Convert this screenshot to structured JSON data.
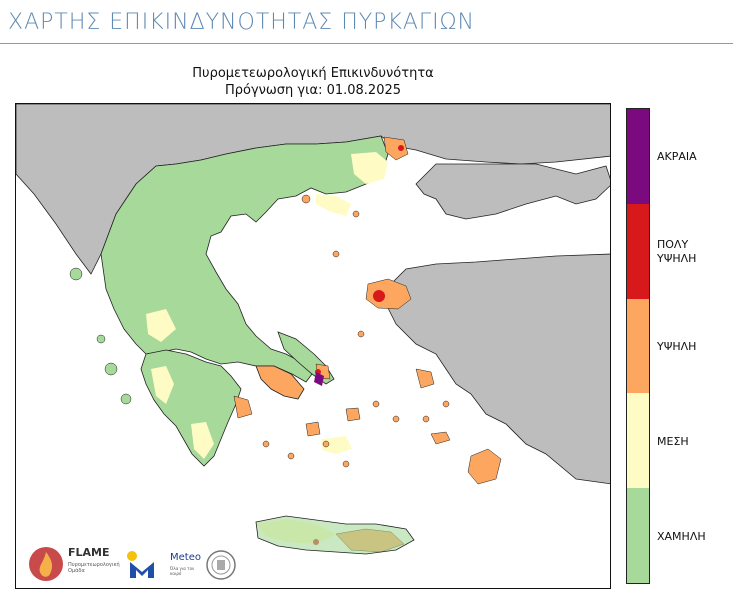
{
  "page": {
    "title": "ΧΑΡΤΗΣ ΕΠΙΚΙΝΔΥΝΟΤΗΤΑΣ ΠΥΡΚΑΓΙΩΝ"
  },
  "map": {
    "title_line1": "Πυρομετεωρολογική Επικινδυνότητα",
    "title_line2": "Πρόγνωση για: 01.08.2025",
    "colors": {
      "sea": "#ffffff",
      "neighbor_land": "#bdbdbd",
      "low": "#a6d99a",
      "medium": "#fefcc4",
      "high": "#fca660",
      "very_high": "#d7191c",
      "extreme": "#7b0a7e",
      "borders": "#222222"
    }
  },
  "legend": {
    "items": [
      {
        "label": "ΑΚΡΑΙΑ",
        "color": "#7b0a7e"
      },
      {
        "label": "ΠΟΛΥ ΥΨΗΛΗ",
        "color": "#d7191c"
      },
      {
        "label": "ΥΨΗΛΗ",
        "color": "#fca660"
      },
      {
        "label": "ΜΕΣΗ",
        "color": "#fefcc4"
      },
      {
        "label": "ΧΑΜΗΛΗ",
        "color": "#a6d99a"
      }
    ]
  },
  "logos": {
    "flame": {
      "name": "FLAME",
      "subtitle": "Πυρομετεωρολογική Ομάδα"
    },
    "meteo": {
      "name": "Meteo",
      "subtitle": "Όλα για τον καιρό"
    },
    "seal_icon": "university-seal-icon"
  }
}
